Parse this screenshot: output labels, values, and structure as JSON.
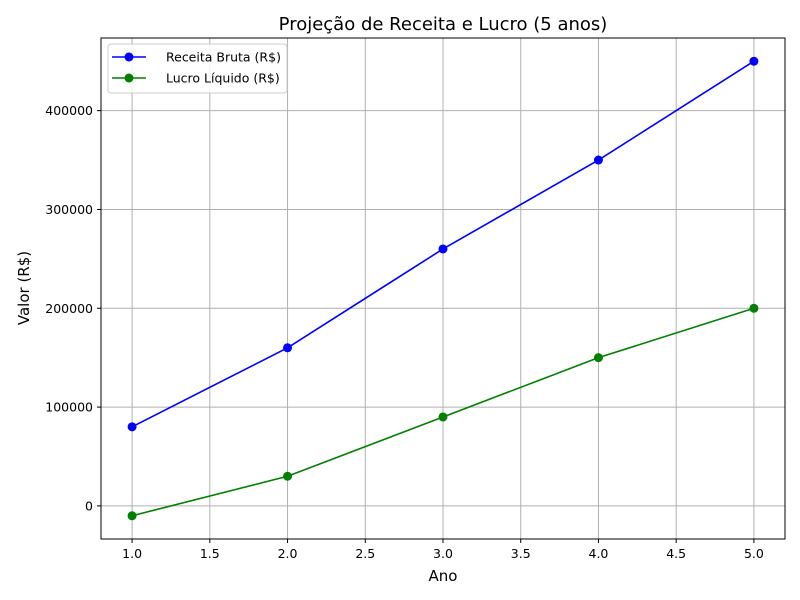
{
  "chart_data": {
    "type": "line",
    "title": "Projeção de Receita e Lucro (5 anos)",
    "xlabel": "Ano",
    "ylabel": "Valor (R$)",
    "x": [
      1,
      2,
      3,
      4,
      5
    ],
    "xlim": [
      0.8,
      5.2
    ],
    "ylim": [
      -33500,
      473500
    ],
    "xticks": [
      1.0,
      1.5,
      2.0,
      2.5,
      3.0,
      3.5,
      4.0,
      4.5,
      5.0
    ],
    "xtick_labels": [
      "1.0",
      "1.5",
      "2.0",
      "2.5",
      "3.0",
      "3.5",
      "4.0",
      "4.5",
      "5.0"
    ],
    "yticks": [
      0,
      100000,
      200000,
      300000,
      400000
    ],
    "ytick_labels": [
      "0",
      "100000",
      "200000",
      "300000",
      "400000"
    ],
    "grid": true,
    "legend_position": "top-left",
    "series": [
      {
        "name": "Receita Bruta (R$)",
        "color": "#0000ff",
        "marker": "circle",
        "values": [
          80000,
          160000,
          260000,
          350000,
          450000
        ]
      },
      {
        "name": "Lucro Líquido (R$)",
        "color": "#008000",
        "marker": "circle",
        "values": [
          -10000,
          30000,
          90000,
          150000,
          200000
        ]
      }
    ]
  }
}
